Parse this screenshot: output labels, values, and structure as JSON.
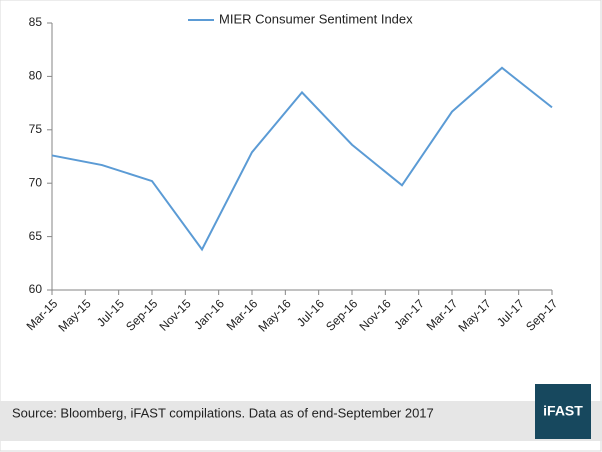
{
  "chart_data": {
    "type": "line",
    "x": [
      "2015-03",
      "2015-06",
      "2015-09",
      "2015-12",
      "2016-03",
      "2016-06",
      "2016-09",
      "2016-12",
      "2017-03",
      "2017-06",
      "2017-09"
    ],
    "series": [
      {
        "name": "MIER Consumer Sentiment Index",
        "color": "#5b9bd5",
        "values": [
          72.6,
          71.7,
          70.2,
          63.8,
          72.9,
          78.5,
          73.6,
          69.8,
          76.7,
          80.8,
          77.1
        ]
      }
    ],
    "xlim": [
      "2015-03",
      "2017-09"
    ],
    "xticks": [
      {
        "value": "2015-03",
        "label": "Mar-15"
      },
      {
        "value": "2015-05",
        "label": "May-15"
      },
      {
        "value": "2015-07",
        "label": "Jul-15"
      },
      {
        "value": "2015-09",
        "label": "Sep-15"
      },
      {
        "value": "2015-11",
        "label": "Nov-15"
      },
      {
        "value": "2016-01",
        "label": "Jan-16"
      },
      {
        "value": "2016-03",
        "label": "Mar-16"
      },
      {
        "value": "2016-05",
        "label": "May-16"
      },
      {
        "value": "2016-07",
        "label": "Jul-16"
      },
      {
        "value": "2016-09",
        "label": "Sep-16"
      },
      {
        "value": "2016-11",
        "label": "Nov-16"
      },
      {
        "value": "2017-01",
        "label": "Jan-17"
      },
      {
        "value": "2017-03",
        "label": "Mar-17"
      },
      {
        "value": "2017-05",
        "label": "May-17"
      },
      {
        "value": "2017-07",
        "label": "Jul-17"
      },
      {
        "value": "2017-09",
        "label": "Sep-17"
      }
    ],
    "ylim": [
      60,
      85
    ],
    "yticks": [
      60,
      65,
      70,
      75,
      80,
      85
    ],
    "grid": false,
    "legend": "top"
  },
  "footer": {
    "source": "Source: Bloomberg, iFAST compilations. Data as of end-September 2017",
    "logo": "iFAST"
  }
}
